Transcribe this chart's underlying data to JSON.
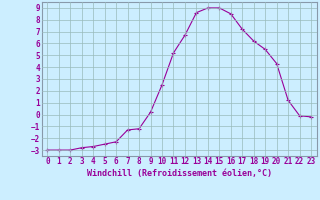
{
  "x": [
    0,
    1,
    2,
    3,
    4,
    5,
    6,
    7,
    8,
    9,
    10,
    11,
    12,
    13,
    14,
    15,
    16,
    17,
    18,
    19,
    20,
    21,
    22,
    23
  ],
  "y": [
    -3,
    -3,
    -3,
    -2.8,
    -2.7,
    -2.5,
    -2.3,
    -1.3,
    -1.2,
    0.2,
    2.5,
    5.2,
    6.7,
    8.6,
    9.0,
    9.0,
    8.5,
    7.2,
    6.2,
    5.5,
    4.3,
    1.2,
    -0.1,
    -0.2
  ],
  "line_color": "#990099",
  "marker": "+",
  "marker_size": 3,
  "linewidth": 0.8,
  "bg_color": "#cceeff",
  "grid_color": "#99bbbb",
  "xlabel": "Windchill (Refroidissement éolien,°C)",
  "yticks": [
    -3,
    -2,
    -1,
    0,
    1,
    2,
    3,
    4,
    5,
    6,
    7,
    8,
    9
  ],
  "ylim": [
    -3.5,
    9.5
  ],
  "xlim": [
    -0.5,
    23.5
  ],
  "xticks": [
    0,
    1,
    2,
    3,
    4,
    5,
    6,
    7,
    8,
    9,
    10,
    11,
    12,
    13,
    14,
    15,
    16,
    17,
    18,
    19,
    20,
    21,
    22,
    23
  ],
  "tick_fontsize": 5.5,
  "xlabel_fontsize": 6.0,
  "spine_color": "#8899aa"
}
